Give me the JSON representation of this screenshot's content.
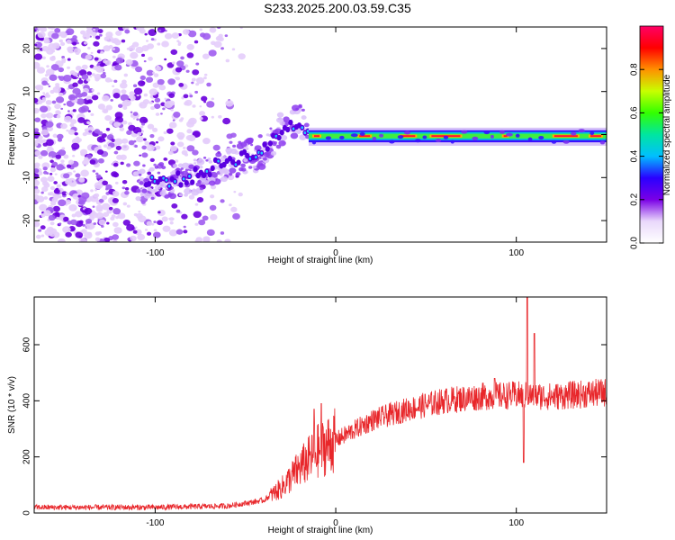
{
  "title": "S233.2025.200.03.59.C35",
  "colors": {
    "plot_line": "#e8262a",
    "axis": "#000000"
  },
  "chart_data": [
    {
      "type": "heatmap",
      "xlabel": "Height of straight line (km)",
      "ylabel": "Frequency (Hz)",
      "xlim": [
        -167,
        150
      ],
      "ylim": [
        -25,
        25
      ],
      "x_ticks": [
        -100,
        0,
        100
      ],
      "y_ticks": [
        -20,
        -10,
        0,
        10,
        20
      ],
      "colorbar": {
        "label": "Normalized spectral amplitude",
        "range": [
          0,
          1
        ],
        "ticks": [
          0.0,
          0.2,
          0.4,
          0.6,
          0.8
        ],
        "colormap": [
          "#ffffff",
          "#e9d8fb",
          "#7a00e6",
          "#2a00ff",
          "#00bfff",
          "#00e6a0",
          "#33ff00",
          "#c8ff00",
          "#ff9000",
          "#ff0000",
          "#ff0066"
        ]
      },
      "trend": [
        {
          "x": -100,
          "y": -11
        },
        {
          "x": -80,
          "y": -10
        },
        {
          "x": -60,
          "y": -6
        },
        {
          "x": -40,
          "y": -4
        },
        {
          "x": -30,
          "y": 1
        },
        {
          "x": -20,
          "y": 3
        },
        {
          "x": -15,
          "y": 0
        },
        {
          "x": 0,
          "y": -1
        },
        {
          "x": 50,
          "y": 0
        },
        {
          "x": 100,
          "y": -0.5
        },
        {
          "x": 150,
          "y": -0.5
        }
      ]
    },
    {
      "type": "line",
      "xlabel": "Height of straight line (km)",
      "ylabel": "SNR (10 * v/v)",
      "xlim": [
        -167,
        150
      ],
      "ylim": [
        0,
        770
      ],
      "x_ticks": [
        -100,
        0,
        100
      ],
      "y_ticks": [
        0,
        200,
        400,
        600
      ],
      "series_profile": [
        {
          "x": -167,
          "y": 20
        },
        {
          "x": -100,
          "y": 20
        },
        {
          "x": -60,
          "y": 25
        },
        {
          "x": -40,
          "y": 45
        },
        {
          "x": -30,
          "y": 90
        },
        {
          "x": -20,
          "y": 160
        },
        {
          "x": -10,
          "y": 220
        },
        {
          "x": 0,
          "y": 260
        },
        {
          "x": 20,
          "y": 330
        },
        {
          "x": 40,
          "y": 370
        },
        {
          "x": 60,
          "y": 400
        },
        {
          "x": 80,
          "y": 415
        },
        {
          "x": 100,
          "y": 420
        },
        {
          "x": 120,
          "y": 415
        },
        {
          "x": 150,
          "y": 430
        }
      ],
      "spikes": [
        {
          "x": -8,
          "y": 390
        },
        {
          "x": -12,
          "y": 370
        },
        {
          "x": 88,
          "y": 480
        },
        {
          "x": 104,
          "y": 180
        },
        {
          "x": 106,
          "y": 770
        },
        {
          "x": 110,
          "y": 640
        }
      ]
    }
  ]
}
